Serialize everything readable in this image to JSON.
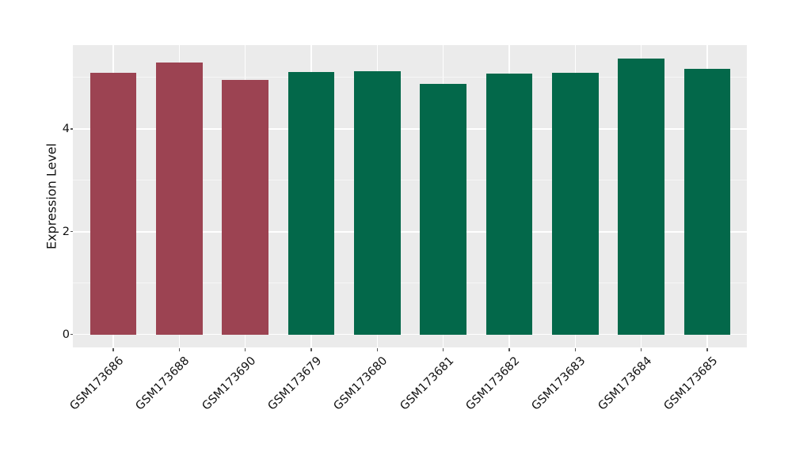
{
  "chart_data": {
    "type": "bar",
    "title": "",
    "xlabel": "",
    "ylabel": "Expression Level",
    "categories": [
      "GSM173686",
      "GSM173688",
      "GSM173690",
      "GSM173679",
      "GSM173680",
      "GSM173681",
      "GSM173682",
      "GSM173683",
      "GSM173684",
      "GSM173685"
    ],
    "values": [
      5.09,
      5.29,
      4.95,
      5.1,
      5.12,
      4.88,
      5.08,
      5.09,
      5.37,
      5.17
    ],
    "bar_colors": [
      "#9c4352",
      "#9c4352",
      "#9c4352",
      "#03684a",
      "#03684a",
      "#03684a",
      "#03684a",
      "#03684a",
      "#03684a",
      "#03684a"
    ],
    "group_colors": {
      "group1_red": "#9c4352",
      "group2_green": "#03684a"
    },
    "yticks": [
      0,
      2,
      4
    ],
    "minor_yticks": [
      1,
      3,
      5
    ],
    "ylim": [
      -0.25,
      5.63
    ],
    "xtick_rotation_deg": 45,
    "grid": "on",
    "legend": "none",
    "panel_bg": "#ebebeb",
    "grid_color_major": "#ffffff",
    "grid_color_minor": "#f6f6f6",
    "figure_bg": "#ffffff",
    "text_color": "#111111"
  }
}
